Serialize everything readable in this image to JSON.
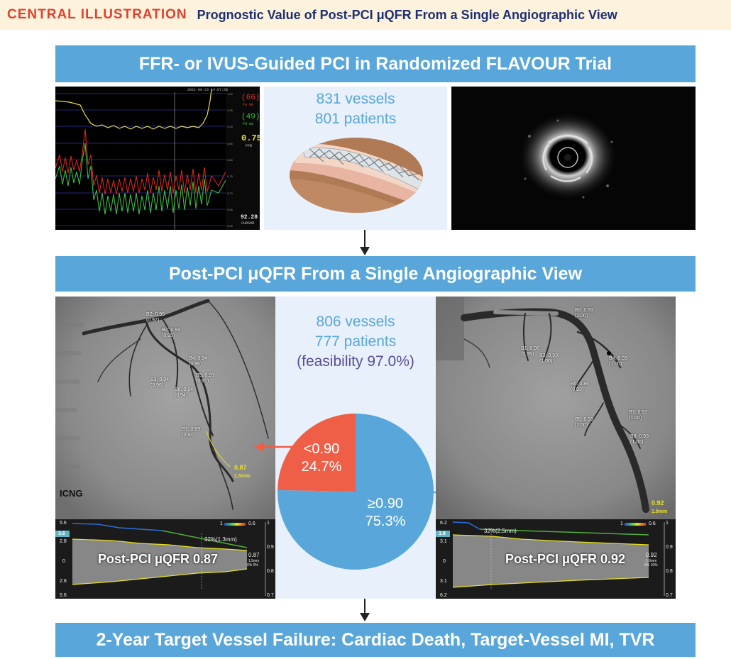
{
  "header": {
    "label": "CENTRAL ILLUSTRATION",
    "title": "Prognostic Value of Post-PCI μQFR From a Single Angiographic View"
  },
  "banners": {
    "top": "FFR- or IVUS-Guided PCI in Randomized FLAVOUR Trial",
    "middle": "Post-PCI μQFR From a Single Angiographic View",
    "bottom": "2-Year Target Vessel Failure: Cardiac Death, Target-Vessel MI, TVR"
  },
  "trial_stats": {
    "vessels": "831 vessels",
    "patients": "801 patients"
  },
  "ffr_monitor": {
    "pa": "(66)",
    "pa_unit": "Pa mm",
    "pd": "(49)",
    "pd_unit": "Pd mm",
    "ffr_value": "0.75",
    "ffr_label": "FFR",
    "cursor_value": "92.28",
    "cursor_label": "CURSOR",
    "timestamp": "2021-06-23 14:07:58"
  },
  "analysis_stats": {
    "vessels": "806 vessels",
    "patients": "777 patients",
    "feasibility": "(feasibility 97.0%)"
  },
  "pie": {
    "slices": [
      {
        "label": "<0.90",
        "percent": "24.7%",
        "value": 24.7,
        "color": "#ef5e47"
      },
      {
        "label": "≥0.90",
        "percent": "75.3%",
        "value": 75.3,
        "color": "#58a6da"
      }
    ]
  },
  "left_angio": {
    "handwriting": "ICNG",
    "result_value": "0.87",
    "result_diam": "1.5mm",
    "strip_label": "Post-PCI μQFR 0.87",
    "strip_small_value": "0.87",
    "strip_small_diam": "1.5mm",
    "strip_small_pct": "0% 0%",
    "stenosis_text": "32%(1.3mm)",
    "scale_top": "1",
    "scale_right": "0.6",
    "axis_left": [
      "5.6",
      "3.6",
      "2.8",
      "0",
      "2.8",
      "5.6"
    ],
    "axis_right": [
      "1",
      "0.9",
      "0.8",
      "0.7"
    ],
    "segments": [
      {
        "name": "B2: 0.95",
        "sub": "(0.97)"
      },
      {
        "name": "B4: 0.94",
        "sub": "(0.95)"
      },
      {
        "name": "B4: 0.94",
        "sub": "(0.96)"
      },
      {
        "name": "B3: 0.94",
        "sub": "(0.96)"
      },
      {
        "name": "B5: 0.91",
        "sub": "(0.91)"
      },
      {
        "name": "B6: 0.94",
        "sub": "(0.94)"
      },
      {
        "name": "B7: 0.89",
        "sub": "(0.93)"
      }
    ]
  },
  "right_angio": {
    "result_value": "0.92",
    "result_diam": "1.9mm",
    "strip_label": "Post-PCI μQFR 0.92",
    "strip_small_value": "0.92",
    "strip_small_diam": "1.9mm",
    "strip_small_pct": "5% 10%",
    "stenosis_text": "32%(2.5mm)",
    "scale_top": "1",
    "scale_right": "0.6",
    "axis_left": [
      "6.2",
      "3.8",
      "3.1",
      "0",
      "3.1",
      "6.2"
    ],
    "axis_right": [
      "1",
      "0.9",
      "0.8",
      "0.7"
    ],
    "segments": [
      {
        "name": "B2: 0.93",
        "sub": "(1.00)"
      },
      {
        "name": "B1: 0.96",
        "sub": "(0.99)"
      },
      {
        "name": "B3: 0.93",
        "sub": "(1.00)"
      },
      {
        "name": "B4: 0.93",
        "sub": "(1.00)"
      },
      {
        "name": "B5: 0.86",
        "sub": "(0.93)"
      },
      {
        "name": "B7: 0.93",
        "sub": "(1.00)"
      },
      {
        "name": "B6: 0.93",
        "sub": "(1.00)"
      },
      {
        "name": "B8: 0.93",
        "sub": "(1.00)"
      }
    ]
  }
}
